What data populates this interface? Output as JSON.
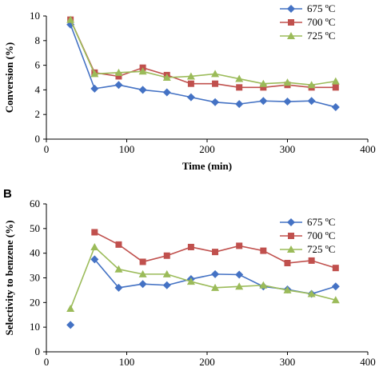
{
  "chart_data": [
    {
      "type": "line",
      "panel_label": "",
      "xlabel": "Time (min)",
      "ylabel": "Conversion (%)",
      "xlim": [
        0,
        400
      ],
      "ylim": [
        0,
        10
      ],
      "xticks": [
        "0",
        "100",
        "200",
        "300",
        "400"
      ],
      "yticks": [
        "0",
        "2",
        "4",
        "6",
        "8",
        "10"
      ],
      "grid": false,
      "legend_position": "top-right",
      "x": [
        30,
        60,
        90,
        120,
        150,
        180,
        210,
        240,
        270,
        300,
        330,
        360
      ],
      "series": [
        {
          "name": "675 ºC",
          "color": "#4472C4",
          "marker": "diamond",
          "values": [
            9.3,
            4.1,
            4.4,
            4.0,
            3.8,
            3.4,
            3.0,
            2.85,
            3.1,
            3.05,
            3.1,
            2.6
          ]
        },
        {
          "name": "700 ºC",
          "color": "#C0504D",
          "marker": "square",
          "values": [
            9.7,
            5.4,
            5.1,
            5.8,
            5.2,
            4.5,
            4.5,
            4.2,
            4.2,
            4.4,
            4.2,
            4.2
          ]
        },
        {
          "name": "725 ºC",
          "color": "#9BBB59",
          "marker": "triangle",
          "values": [
            9.7,
            5.3,
            5.4,
            5.5,
            5.0,
            5.1,
            5.3,
            4.9,
            4.5,
            4.6,
            4.4,
            4.7
          ]
        }
      ]
    },
    {
      "type": "line",
      "panel_label": "B",
      "xlabel": "",
      "ylabel": "Selectivity to benzene (%)",
      "xlim": [
        0,
        400
      ],
      "ylim": [
        0,
        60
      ],
      "xticks": [
        "0",
        "100",
        "200",
        "300",
        "400"
      ],
      "yticks": [
        "0",
        "10",
        "20",
        "30",
        "40",
        "50",
        "60"
      ],
      "grid": false,
      "legend_position": "top-right",
      "x": [
        30,
        60,
        90,
        120,
        150,
        180,
        210,
        240,
        270,
        300,
        330,
        360
      ],
      "series": [
        {
          "name": "675 ºC",
          "color": "#4472C4",
          "marker": "diamond",
          "values": [
            null,
            37.5,
            26.0,
            27.5,
            27.0,
            29.5,
            31.5,
            31.3,
            26.5,
            25.3,
            23.5,
            26.5
          ],
          "extra_points": [
            [
              30,
              10.9
            ]
          ]
        },
        {
          "name": "700 ºC",
          "color": "#C0504D",
          "marker": "square",
          "values": [
            null,
            48.5,
            43.5,
            36.5,
            39.0,
            42.5,
            40.5,
            43.0,
            41.0,
            36.0,
            37.0,
            34.0
          ]
        },
        {
          "name": "725 ºC",
          "color": "#9BBB59",
          "marker": "triangle",
          "values": [
            17.5,
            42.5,
            33.5,
            31.5,
            31.5,
            28.5,
            26.0,
            26.5,
            27.0,
            25.0,
            23.5,
            21.0
          ]
        }
      ]
    }
  ]
}
